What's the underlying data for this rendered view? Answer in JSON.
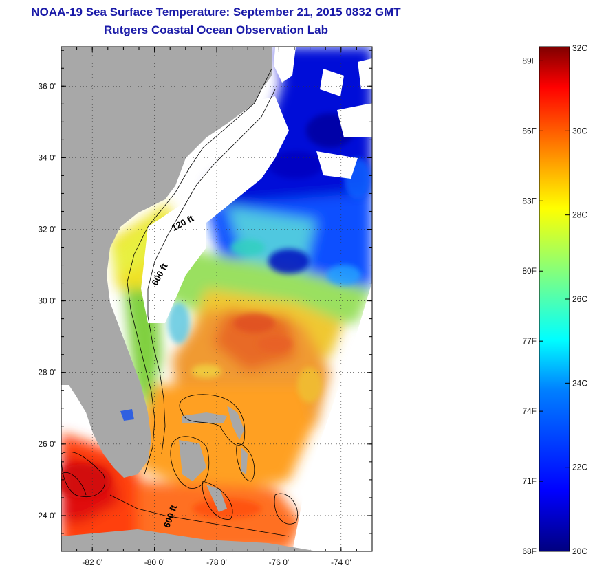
{
  "title": {
    "line1": "NOAA-19 Sea Surface Temperature:  September 21, 2015 0832 GMT",
    "line2": "Rutgers Coastal Ocean Observation Lab"
  },
  "map": {
    "lon_range": [
      -83,
      -73
    ],
    "lat_range": [
      23,
      37.1
    ],
    "lon_ticks": [
      {
        "value": -82,
        "label": "-82 0'"
      },
      {
        "value": -80,
        "label": "-80 0'"
      },
      {
        "value": -78,
        "label": "-78 0'"
      },
      {
        "value": -76,
        "label": "-76 0'"
      },
      {
        "value": -74,
        "label": "-74 0'"
      }
    ],
    "lat_ticks": [
      {
        "value": 24,
        "label": "24 0'"
      },
      {
        "value": 26,
        "label": "26 0'"
      },
      {
        "value": 28,
        "label": "28 0'"
      },
      {
        "value": 30,
        "label": "30 0'"
      },
      {
        "value": 32,
        "label": "32 0'"
      },
      {
        "value": 34,
        "label": "34 0'"
      },
      {
        "value": 36,
        "label": "36 0'"
      }
    ],
    "contour_labels": [
      {
        "text": "120 ft",
        "lon": -79.05,
        "lat": 32.1,
        "angle": -28
      },
      {
        "text": "600 ft",
        "lon": -79.75,
        "lat": 30.7,
        "angle": -62
      },
      {
        "text": "600 ft",
        "lon": -79.4,
        "lat": 23.95,
        "angle": -70
      }
    ],
    "land_color": "#a8a8a8",
    "cloud_color": "#ffffff"
  },
  "colorbar": {
    "range_c": [
      20,
      32
    ],
    "celsius_labels": [
      {
        "value": 32,
        "label": "32C"
      },
      {
        "value": 30,
        "label": "30C"
      },
      {
        "value": 28,
        "label": "28C"
      },
      {
        "value": 26,
        "label": "26C"
      },
      {
        "value": 24,
        "label": "24C"
      },
      {
        "value": 22,
        "label": "22C"
      },
      {
        "value": 20,
        "label": "20C"
      }
    ],
    "fahrenheit_labels": [
      {
        "value": 89,
        "label": "89F"
      },
      {
        "value": 86,
        "label": "86F"
      },
      {
        "value": 83,
        "label": "83F"
      },
      {
        "value": 80,
        "label": "80F"
      },
      {
        "value": 77,
        "label": "77F"
      },
      {
        "value": 74,
        "label": "74F"
      },
      {
        "value": 71,
        "label": "71F"
      },
      {
        "value": 68,
        "label": "68F"
      }
    ],
    "colors": [
      "#00007f",
      "#0000ff",
      "#0080ff",
      "#00ffff",
      "#80ff80",
      "#ffff00",
      "#ff8000",
      "#ff0000",
      "#7f0000"
    ]
  }
}
